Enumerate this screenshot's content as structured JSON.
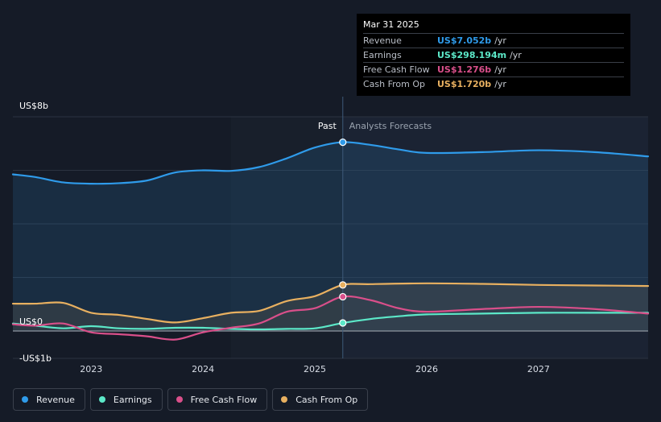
{
  "tooltip": {
    "date": "Mar 31 2025",
    "rows": [
      {
        "label": "Revenue",
        "value": "US$7.052b",
        "unit": "/yr",
        "color": "#2f9bea"
      },
      {
        "label": "Earnings",
        "value": "US$298.194m",
        "unit": "/yr",
        "color": "#5ce8c8"
      },
      {
        "label": "Free Cash Flow",
        "value": "US$1.276b",
        "unit": "/yr",
        "color": "#d94f8a"
      },
      {
        "label": "Cash From Op",
        "value": "US$1.720b",
        "unit": "/yr",
        "color": "#e8b060"
      }
    ]
  },
  "legend": [
    {
      "label": "Revenue",
      "color": "#2f9bea"
    },
    {
      "label": "Earnings",
      "color": "#5ce8c8"
    },
    {
      "label": "Free Cash Flow",
      "color": "#d94f8a"
    },
    {
      "label": "Cash From Op",
      "color": "#e8b060"
    }
  ],
  "chart_data": {
    "type": "line",
    "title": "",
    "ylim": [
      -1,
      8
    ],
    "yticks": [
      {
        "value": 8,
        "label": "US$8b"
      },
      {
        "value": 0,
        "label": "US$0"
      },
      {
        "value": -1,
        "label": "-US$1b"
      }
    ],
    "gridlines": [
      0,
      2,
      4,
      6,
      8
    ],
    "xlim": [
      2022.3,
      2027.98
    ],
    "xticks": [
      {
        "value": 2023,
        "label": "2023"
      },
      {
        "value": 2024,
        "label": "2024"
      },
      {
        "value": 2025,
        "label": "2025"
      },
      {
        "value": 2026,
        "label": "2026"
      },
      {
        "value": 2027,
        "label": "2027"
      }
    ],
    "past_label": "Past",
    "forecast_label": "Analysts Forecasts",
    "divider_x": 2025.25,
    "highlight_start": 2024.25,
    "series": [
      {
        "name": "Revenue",
        "color": "#2f9bea",
        "fill": true,
        "points": [
          [
            2022.3,
            5.85
          ],
          [
            2022.5,
            5.75
          ],
          [
            2022.75,
            5.55
          ],
          [
            2023.0,
            5.5
          ],
          [
            2023.25,
            5.52
          ],
          [
            2023.5,
            5.62
          ],
          [
            2023.75,
            5.92
          ],
          [
            2024.0,
            6.0
          ],
          [
            2024.25,
            5.98
          ],
          [
            2024.5,
            6.12
          ],
          [
            2024.75,
            6.45
          ],
          [
            2025.0,
            6.85
          ],
          [
            2025.25,
            7.05
          ],
          [
            2025.5,
            6.95
          ],
          [
            2025.75,
            6.78
          ],
          [
            2026.0,
            6.65
          ],
          [
            2026.5,
            6.68
          ],
          [
            2027.0,
            6.75
          ],
          [
            2027.5,
            6.68
          ],
          [
            2027.98,
            6.52
          ]
        ]
      },
      {
        "name": "Earnings",
        "color": "#5ce8c8",
        "fill": false,
        "points": [
          [
            2022.3,
            0.28
          ],
          [
            2022.5,
            0.2
          ],
          [
            2022.75,
            0.1
          ],
          [
            2023.0,
            0.18
          ],
          [
            2023.25,
            0.1
          ],
          [
            2023.5,
            0.08
          ],
          [
            2023.75,
            0.12
          ],
          [
            2024.0,
            0.12
          ],
          [
            2024.25,
            0.08
          ],
          [
            2024.5,
            0.06
          ],
          [
            2024.75,
            0.08
          ],
          [
            2025.0,
            0.1
          ],
          [
            2025.25,
            0.3
          ],
          [
            2025.5,
            0.45
          ],
          [
            2025.75,
            0.55
          ],
          [
            2026.0,
            0.62
          ],
          [
            2026.5,
            0.65
          ],
          [
            2027.0,
            0.68
          ],
          [
            2027.5,
            0.68
          ],
          [
            2027.98,
            0.68
          ]
        ]
      },
      {
        "name": "Free Cash Flow",
        "color": "#d94f8a",
        "fill": false,
        "points": [
          [
            2022.3,
            0.25
          ],
          [
            2022.5,
            0.2
          ],
          [
            2022.75,
            0.28
          ],
          [
            2023.0,
            -0.05
          ],
          [
            2023.25,
            -0.12
          ],
          [
            2023.5,
            -0.2
          ],
          [
            2023.75,
            -0.32
          ],
          [
            2024.0,
            -0.05
          ],
          [
            2024.25,
            0.12
          ],
          [
            2024.5,
            0.28
          ],
          [
            2024.75,
            0.72
          ],
          [
            2025.0,
            0.85
          ],
          [
            2025.25,
            1.28
          ],
          [
            2025.5,
            1.15
          ],
          [
            2025.75,
            0.85
          ],
          [
            2026.0,
            0.72
          ],
          [
            2026.5,
            0.82
          ],
          [
            2027.0,
            0.9
          ],
          [
            2027.5,
            0.82
          ],
          [
            2027.98,
            0.65
          ]
        ]
      },
      {
        "name": "Cash From Op",
        "color": "#e8b060",
        "fill": true,
        "points": [
          [
            2022.3,
            1.02
          ],
          [
            2022.5,
            1.02
          ],
          [
            2022.75,
            1.05
          ],
          [
            2023.0,
            0.68
          ],
          [
            2023.25,
            0.6
          ],
          [
            2023.5,
            0.45
          ],
          [
            2023.75,
            0.32
          ],
          [
            2024.0,
            0.48
          ],
          [
            2024.25,
            0.68
          ],
          [
            2024.5,
            0.75
          ],
          [
            2024.75,
            1.12
          ],
          [
            2025.0,
            1.3
          ],
          [
            2025.25,
            1.72
          ],
          [
            2025.5,
            1.75
          ],
          [
            2026.0,
            1.78
          ],
          [
            2026.5,
            1.76
          ],
          [
            2027.0,
            1.72
          ],
          [
            2027.5,
            1.7
          ],
          [
            2027.98,
            1.68
          ]
        ]
      }
    ]
  }
}
